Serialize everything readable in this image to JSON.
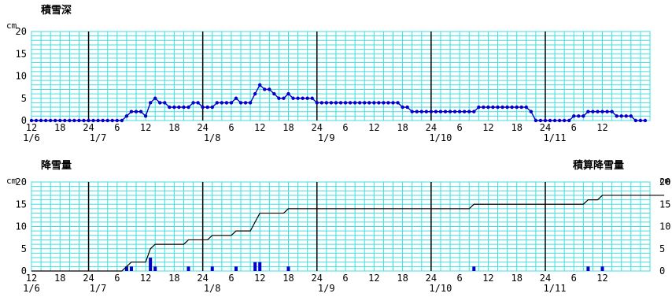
{
  "chart_data": [
    {
      "type": "line",
      "title": "積雪深",
      "ylabel": "cm",
      "ylim": [
        0,
        20
      ],
      "yticks": [
        0,
        5,
        10,
        15,
        20
      ],
      "hour_ticks": [
        "12",
        "18",
        "24",
        "6",
        "12",
        "18",
        "24",
        "6",
        "12",
        "18",
        "24",
        "6",
        "12",
        "18",
        "24",
        "6",
        "12",
        "18",
        "24",
        "6",
        "12"
      ],
      "date_ticks": [
        "1/6",
        "1/7",
        "1/8",
        "1/9",
        "1/10",
        "1/11"
      ],
      "grid": true,
      "series": [
        {
          "values": [
            0,
            0,
            0,
            0,
            0,
            0,
            0,
            0,
            0,
            0,
            0,
            0,
            0,
            0,
            0,
            0,
            0,
            0,
            0,
            0,
            1,
            2,
            2,
            2,
            1,
            4,
            5,
            4,
            4,
            3,
            3,
            3,
            3,
            3,
            4,
            4,
            3,
            3,
            3,
            4,
            4,
            4,
            4,
            5,
            4,
            4,
            4,
            6,
            8,
            7,
            7,
            6,
            5,
            5,
            6,
            5,
            5,
            5,
            5,
            5,
            4,
            4,
            4,
            4,
            4,
            4,
            4,
            4,
            4,
            4,
            4,
            4,
            4,
            4,
            4,
            4,
            4,
            4,
            3,
            3,
            2,
            2,
            2,
            2,
            2,
            2,
            2,
            2,
            2,
            2,
            2,
            2,
            2,
            2,
            3,
            3,
            3,
            3,
            3,
            3,
            3,
            3,
            3,
            3,
            3,
            2,
            0,
            0,
            0,
            0,
            0,
            0,
            0,
            0,
            1,
            1,
            1,
            2,
            2,
            2,
            2,
            2,
            2,
            1,
            1,
            1,
            1,
            0,
            0,
            0
          ]
        }
      ]
    },
    {
      "type": "bar",
      "title": "降雪量",
      "ylabel": "cm",
      "ylim": [
        0,
        20
      ],
      "yticks": [
        0,
        5,
        10,
        15,
        20
      ],
      "hour_ticks": [
        "12",
        "18",
        "24",
        "6",
        "12",
        "18",
        "24",
        "6",
        "12",
        "18",
        "24",
        "6",
        "12",
        "18",
        "24",
        "6",
        "12",
        "18",
        "24",
        "6",
        "12"
      ],
      "date_ticks": [
        "1/6",
        "1/7",
        "1/8",
        "1/9",
        "1/10",
        "1/11"
      ],
      "grid": true,
      "series": [
        {
          "values": [
            0,
            0,
            0,
            0,
            0,
            0,
            0,
            0,
            0,
            0,
            0,
            0,
            0,
            0,
            0,
            0,
            0,
            0,
            0,
            0,
            1,
            1,
            0,
            0,
            0,
            3,
            1,
            0,
            0,
            0,
            0,
            0,
            0,
            1,
            0,
            0,
            0,
            0,
            1,
            0,
            0,
            0,
            0,
            1,
            0,
            0,
            0,
            2,
            2,
            0,
            0,
            0,
            0,
            0,
            1,
            0,
            0,
            0,
            0,
            0,
            0,
            0,
            0,
            0,
            0,
            0,
            0,
            0,
            0,
            0,
            0,
            0,
            0,
            0,
            0,
            0,
            0,
            0,
            0,
            0,
            0,
            0,
            0,
            0,
            0,
            0,
            0,
            0,
            0,
            0,
            0,
            0,
            0,
            1,
            0,
            0,
            0,
            0,
            0,
            0,
            0,
            0,
            0,
            0,
            0,
            0,
            0,
            0,
            0,
            0,
            0,
            0,
            0,
            0,
            0,
            0,
            0,
            1,
            0,
            0,
            1,
            0,
            0,
            0,
            0,
            0,
            0,
            0,
            0,
            0,
            0,
            0,
            0,
            0
          ]
        },
        {
          "name": "積算降雪量",
          "type": "line",
          "ylabel": "cm",
          "ylim": [
            0,
            20
          ],
          "yticks": [
            0,
            5,
            10,
            15,
            20
          ],
          "values": [
            0,
            0,
            0,
            0,
            0,
            0,
            0,
            0,
            0,
            0,
            0,
            0,
            0,
            0,
            0,
            0,
            0,
            0,
            0,
            0,
            1,
            2,
            2,
            2,
            2,
            5,
            6,
            6,
            6,
            6,
            6,
            6,
            6,
            7,
            7,
            7,
            7,
            7,
            8,
            8,
            8,
            8,
            8,
            9,
            9,
            9,
            9,
            11,
            13,
            13,
            13,
            13,
            13,
            13,
            14,
            14,
            14,
            14,
            14,
            14,
            14,
            14,
            14,
            14,
            14,
            14,
            14,
            14,
            14,
            14,
            14,
            14,
            14,
            14,
            14,
            14,
            14,
            14,
            14,
            14,
            14,
            14,
            14,
            14,
            14,
            14,
            14,
            14,
            14,
            14,
            14,
            14,
            14,
            15,
            15,
            15,
            15,
            15,
            15,
            15,
            15,
            15,
            15,
            15,
            15,
            15,
            15,
            15,
            15,
            15,
            15,
            15,
            15,
            15,
            15,
            15,
            15,
            16,
            16,
            16,
            17,
            17,
            17,
            17,
            17,
            17,
            17,
            17,
            17,
            17,
            17,
            17,
            17,
            17
          ]
        }
      ]
    }
  ]
}
